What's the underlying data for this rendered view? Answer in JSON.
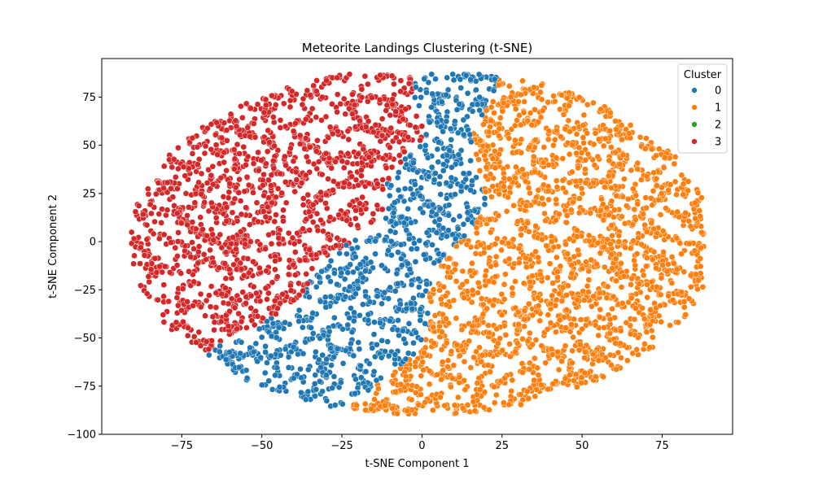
{
  "chart_data": {
    "type": "scatter",
    "title": "Meteorite Landings Clustering (t-SNE)",
    "xlabel": "t-SNE Component 1",
    "ylabel": "t-SNE Component 2",
    "xlim": [
      -100,
      97
    ],
    "ylim": [
      -100,
      95
    ],
    "xticks": [
      -75,
      -50,
      -25,
      0,
      25,
      50,
      75
    ],
    "yticks": [
      -100,
      -75,
      -50,
      -25,
      0,
      25,
      50,
      75
    ],
    "xtick_labels": [
      "−75",
      "−50",
      "−25",
      "0",
      "25",
      "50",
      "75"
    ],
    "ytick_labels": [
      "−100",
      "−75",
      "−50",
      "−25",
      "0",
      "25",
      "50",
      "75"
    ],
    "grid": false,
    "legend": {
      "title": "Cluster",
      "placement": "top-right"
    },
    "series": [
      {
        "name": "0",
        "color": "#1f77b4",
        "region": {
          "center": [
            -5,
            -10
          ],
          "extent": [
            [
              -52,
              20
            ],
            [
              -91,
              62
            ]
          ]
        },
        "point_count": 1400
      },
      {
        "name": "1",
        "color": "#ff7f0e",
        "region": {
          "center": [
            45,
            5
          ],
          "extent": [
            [
              0,
              87
            ],
            [
              -83,
              78
            ]
          ]
        },
        "point_count": 1600
      },
      {
        "name": "2",
        "color": "#2ca02c",
        "region": null,
        "point_count": 0
      },
      {
        "name": "3",
        "color": "#d62728",
        "region": {
          "center": [
            -50,
            10
          ],
          "extent": [
            [
              -92,
              6
            ],
            [
              -70,
              86
            ]
          ]
        },
        "point_count": 1600
      }
    ]
  }
}
